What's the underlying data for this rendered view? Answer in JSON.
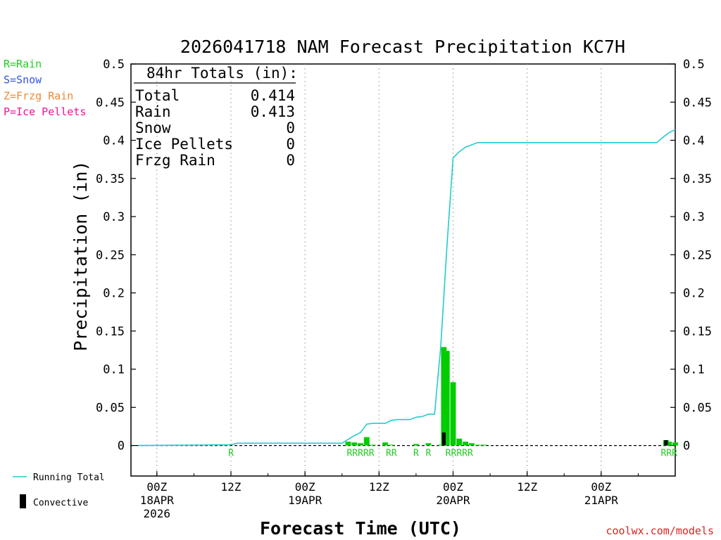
{
  "chart_data": {
    "type": "bar",
    "title": "2026041718 NAM Forecast Precipitation KC7H",
    "ylabel": "Precipitation (in)",
    "xlabel": "Forecast Time (UTC)",
    "ylim": [
      -0.04,
      0.5
    ],
    "xlim_hours": [
      -4.2,
      84
    ],
    "y_ticks": [
      "0.5",
      "0.45",
      "0.4",
      "0.35",
      "0.3",
      "0.25",
      "0.2",
      "0.15",
      "0.1",
      "0.05",
      "0"
    ],
    "y_tick_values": [
      0.5,
      0.45,
      0.4,
      0.35,
      0.3,
      0.25,
      0.2,
      0.15,
      0.1,
      0.05,
      0
    ],
    "x_ticks": [
      {
        "hour": 0,
        "lines": [
          "00Z",
          "18APR",
          "2026"
        ]
      },
      {
        "hour": 12,
        "lines": [
          "12Z"
        ]
      },
      {
        "hour": 24,
        "lines": [
          "00Z",
          "19APR"
        ]
      },
      {
        "hour": 36,
        "lines": [
          "12Z"
        ]
      },
      {
        "hour": 48,
        "lines": [
          "00Z",
          "20APR"
        ]
      },
      {
        "hour": 60,
        "lines": [
          "12Z"
        ]
      },
      {
        "hour": 72,
        "lines": [
          "00Z",
          "21APR"
        ]
      }
    ],
    "grid": true,
    "legend_types": [
      {
        "label": "R=Rain",
        "color": "#22cc22"
      },
      {
        "label": "S=Snow",
        "color": "#3355dd"
      },
      {
        "label": "Z=Frzg Rain",
        "color": "#ee8833"
      },
      {
        "label": "P=Ice Pellets",
        "color": "#ee1199"
      }
    ],
    "legend_series": [
      {
        "label": "Running Total",
        "color": "#22cccc",
        "symbol": "line"
      },
      {
        "label": "Convective",
        "color": "#000000",
        "symbol": "bar"
      }
    ],
    "totals": {
      "heading": "84hr Totals (in):",
      "rows": [
        {
          "label": "Total",
          "value": "0.414"
        },
        {
          "label": "Rain",
          "value": "0.413"
        },
        {
          "label": "Snow",
          "value": "0"
        },
        {
          "label": "Ice Pellets",
          "value": "0"
        },
        {
          "label": "Frzg Rain",
          "value": "0"
        }
      ]
    },
    "colors": {
      "rain": "#00cc00",
      "convective": "#000000",
      "running_total": "#22cccc",
      "ptype_label": "#22cc22",
      "credit": "#dd2222"
    },
    "bar_width_hours": 0.9,
    "series": [
      {
        "name": "Rain",
        "hours": [
          11,
          31,
          32,
          33,
          34,
          35,
          37,
          38,
          42,
          44,
          46,
          46.5,
          47,
          48,
          49,
          50,
          51,
          52,
          53,
          82.5,
          83,
          84
        ],
        "values": [
          0.001,
          0.005,
          0.004,
          0.003,
          0.011,
          0.001,
          0.004,
          0.001,
          0.002,
          0.003,
          0.001,
          0.129,
          0.124,
          0.083,
          0.009,
          0.005,
          0.003,
          0.001,
          0.001,
          0.007,
          0.005,
          0.004
        ]
      },
      {
        "name": "Convective",
        "hours": [
          46.5,
          82.5
        ],
        "values": [
          0.017,
          0.007
        ]
      },
      {
        "name": "Running Total",
        "type": "line",
        "hours": [
          -3,
          12,
          13,
          30,
          31,
          32,
          33,
          34,
          35,
          36,
          37,
          38,
          39,
          40,
          41,
          42,
          43,
          44,
          45,
          46,
          47,
          48,
          49,
          50,
          51,
          52,
          53,
          55,
          60,
          70,
          81,
          82,
          83,
          84
        ],
        "values": [
          0,
          0.001,
          0.003,
          0.003,
          0.008,
          0.013,
          0.017,
          0.028,
          0.029,
          0.029,
          0.029,
          0.033,
          0.034,
          0.034,
          0.034,
          0.037,
          0.038,
          0.041,
          0.041,
          0.13,
          0.26,
          0.377,
          0.385,
          0.391,
          0.394,
          0.397,
          0.397,
          0.397,
          0.397,
          0.397,
          0.397,
          0.404,
          0.41,
          0.414
        ]
      }
    ],
    "ptype_labels": [
      {
        "hour": 12,
        "text": "R"
      },
      {
        "hour": 33,
        "text": "RRRRR"
      },
      {
        "hour": 38,
        "text": "RR"
      },
      {
        "hour": 42,
        "text": "R"
      },
      {
        "hour": 44,
        "text": "R"
      },
      {
        "hour": 49,
        "text": "RRRRR"
      },
      {
        "hour": 83,
        "text": "RRR"
      }
    ]
  },
  "footer": {
    "credit": "coolwx.com/models"
  }
}
